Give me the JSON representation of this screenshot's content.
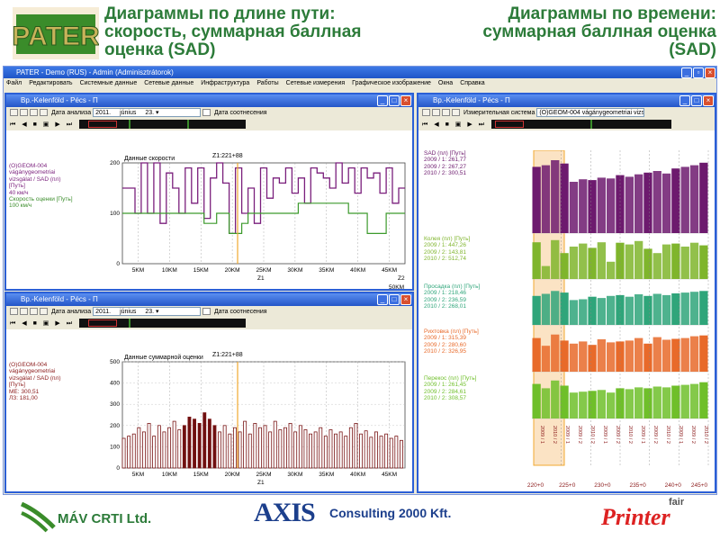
{
  "header": {
    "left_title_lines": [
      "Диаграммы по длине пути:",
      "скорость, суммарная баллная",
      "оценка (SAD)"
    ],
    "right_title_lines": [
      "Диаграммы по времени:",
      "суммарная баллная оценка",
      "(SAD)"
    ],
    "logo_text": "PATER"
  },
  "app": {
    "title": "PATER - Demo (RUS) - Admin (Adminisztrátorok)",
    "menu": [
      "Файл",
      "Редактировать",
      "Системные данные",
      "Сетевые данные",
      "Инфраструктура",
      "Работы",
      "Сетевые измерения",
      "Графическое изображение",
      "Окна",
      "Справка"
    ]
  },
  "win1": {
    "title": "Вр.-Kelenföld - Pécs - П",
    "date_label": "Дата анализа",
    "date_year": "2011.",
    "date_month": "június",
    "date_day": "23.",
    "compare_label": "Дата соотнесения",
    "chart_title": "Данные скорости",
    "z1": "Z1:221+88",
    "z1_axis": "Z1",
    "z2_axis": "Z2",
    "unit_label": "50KM",
    "legend": [
      "(O)GEOM-004",
      "vágánygeometriai",
      "vizsgálat / SAD (пл)",
      "[Путь]",
      "40 км/ч"
    ],
    "legend_green": [
      "Скорость оценки [Путь]",
      "100 км/ч"
    ]
  },
  "win2": {
    "title": "Вр.-Kelenföld - Pécs - П",
    "date_label": "Дата анализа",
    "date_year": "2011.",
    "date_month": "június",
    "date_day": "23.",
    "compare_label": "Дата соотнесения",
    "chart_title": "Данные суммарной оценки",
    "z1": "Z1:221+88",
    "z1_axis": "Z1",
    "legend": [
      "(O)GEOM-004",
      "vágánygeometriai",
      "vizsgálat / SAD (пл)",
      "[Путь]",
      "МЕ: 300,51",
      "ЛЗ: 181,00"
    ]
  },
  "win3": {
    "title": "Вр.-Kelenföld - Pécs - П",
    "system_label": "Измерительная система",
    "system_value": "(O)GEOM-004 vágánygeometriai vizs",
    "groups": [
      {
        "name": "SAD (пл) [Путь]",
        "lines": [
          "2009 / 1: 261,77",
          "2009 / 2: 267,27",
          "2010 / 2: 300,51"
        ],
        "color": "#6d1a6e"
      },
      {
        "name": "Колея (пл) [Путь]",
        "lines": [
          "2009 / 1: 447,26",
          "2009 / 2: 143,81",
          "2010 / 2: 512,74"
        ],
        "color": "#7fb52c"
      },
      {
        "name": "Просадка (пл) [Путь]",
        "lines": [
          "2009 / 1: 218,46",
          "2009 / 2: 236,59",
          "2010 / 2: 268,01"
        ],
        "color": "#2fa57a"
      },
      {
        "name": "Рихтовка (пл) [Путь]",
        "lines": [
          "2009 / 1: 315,39",
          "2009 / 2: 280,60",
          "2010 / 2: 326,95"
        ],
        "color": "#e86a2a"
      },
      {
        "name": "Перекос (пл) [Путь]",
        "lines": [
          "2009 / 1: 261,45",
          "2009 / 2: 284,61",
          "2010 / 2: 308,57"
        ],
        "color": "#6fbf2a"
      }
    ],
    "period_labels": [
      "2009 / 1",
      "2010 / 2",
      "2009 / 1",
      "2009 / 2",
      "2010 / 2",
      "2009 / 1",
      "2009 / 2",
      "2010 / 2",
      "2009 / 1",
      "2009 / 2",
      "2010 / 2",
      "2009 / 1",
      "2009 / 2",
      "2010 / 2"
    ],
    "km_labels": [
      "220+0",
      "225+0",
      "230+0",
      "235+0",
      "240+0",
      "245+0"
    ]
  },
  "chart_data": [
    {
      "type": "line",
      "title": "Данные скорости",
      "xlabel": "Z1",
      "ylim": [
        0,
        200
      ],
      "yticks": [
        0,
        100,
        200
      ],
      "xticks": [
        "5KM",
        "10KM",
        "15KM",
        "20KM",
        "25KM",
        "30KM",
        "35KM",
        "40KM",
        "45KM"
      ],
      "series": [
        {
          "name": "SAD",
          "color": "#7a1f7c",
          "values": [
            150,
            150,
            100,
            200,
            100,
            200,
            80,
            180,
            150,
            100,
            190,
            120,
            190,
            90,
            170,
            200,
            160,
            60,
            190,
            100,
            150,
            80,
            190,
            130,
            170,
            160,
            190,
            140,
            170,
            120,
            190,
            180,
            170,
            150,
            200,
            160,
            190,
            140,
            190,
            170,
            180,
            140,
            190,
            120,
            150
          ]
        },
        {
          "name": "Скорость",
          "color": "#3c9a2c",
          "values": [
            100,
            100,
            100,
            100,
            100,
            100,
            100,
            100,
            100,
            100,
            100,
            100,
            100,
            80,
            80,
            100,
            100,
            60,
            60,
            80,
            100,
            100,
            100,
            100,
            100,
            100,
            100,
            100,
            120,
            120,
            120,
            120,
            120,
            120,
            120,
            120,
            100,
            100,
            100,
            60,
            60,
            60,
            100,
            100,
            100
          ]
        }
      ]
    },
    {
      "type": "bar",
      "title": "Данные суммарной оценки",
      "xlabel": "Z1",
      "ylim": [
        0,
        500
      ],
      "yticks": [
        0,
        100,
        200,
        300,
        400,
        500
      ],
      "xticks": [
        "5KM",
        "10KM",
        "15KM",
        "20KM",
        "25KM",
        "30KM",
        "35KM",
        "40KM",
        "45KM"
      ],
      "values": [
        140,
        150,
        160,
        190,
        170,
        210,
        150,
        200,
        170,
        190,
        220,
        180,
        200,
        240,
        230,
        210,
        260,
        230,
        200,
        170,
        200,
        160,
        190,
        170,
        220,
        160,
        210,
        190,
        200,
        170,
        220,
        180,
        190,
        210,
        170,
        200,
        180,
        160,
        170,
        190,
        150,
        180,
        160,
        170,
        150,
        190,
        210,
        160,
        175,
        145,
        170,
        150,
        160,
        140,
        150,
        130
      ]
    },
    {
      "type": "bar",
      "title": "SAD (пл) [Путь]",
      "series": [
        {
          "name": "SAD",
          "values": [
            80,
            82,
            88,
            84,
            62,
            65,
            64,
            67,
            66,
            70,
            68,
            71,
            73,
            75,
            72,
            78,
            80,
            82,
            85
          ]
        },
        {
          "name": "Колея",
          "values": [
            85,
            30,
            90,
            60,
            75,
            82,
            72,
            85,
            40,
            84,
            80,
            88,
            70,
            60,
            80,
            82,
            75,
            84,
            78
          ]
        },
        {
          "name": "Просадка",
          "values": [
            70,
            75,
            82,
            78,
            60,
            62,
            68,
            65,
            70,
            72,
            68,
            74,
            70,
            75,
            72,
            76,
            78,
            80,
            82
          ]
        },
        {
          "name": "Рихтовка",
          "values": [
            78,
            60,
            86,
            72,
            65,
            70,
            62,
            75,
            68,
            70,
            72,
            78,
            65,
            80,
            74,
            76,
            78,
            82,
            84
          ]
        },
        {
          "name": "Перекос",
          "values": [
            80,
            70,
            88,
            76,
            60,
            62,
            64,
            66,
            60,
            70,
            68,
            72,
            70,
            74,
            72,
            76,
            78,
            80,
            84
          ]
        }
      ]
    }
  ],
  "footer": {
    "mav": "MÁV CRTI Ltd.",
    "axis": "AXIS",
    "consulting": "Consulting 2000 Kft.",
    "printer_small": "fair",
    "printer": "Printer"
  }
}
